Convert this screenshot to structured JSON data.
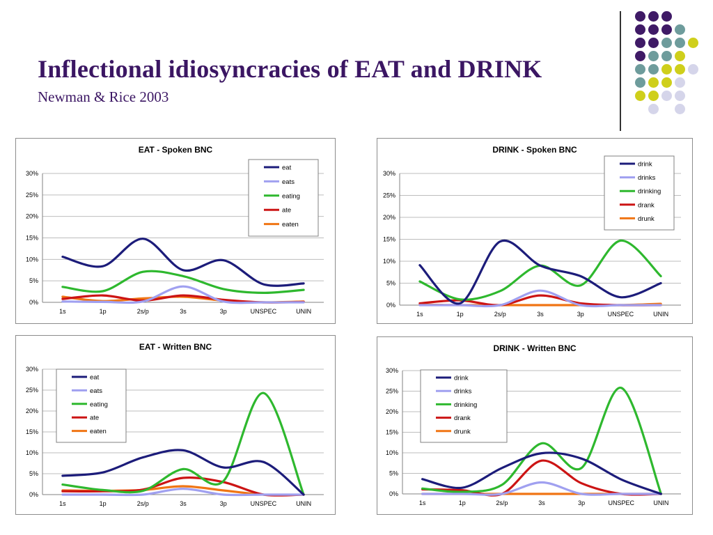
{
  "slide": {
    "title": "Inflectional idiosyncracies of EAT and DRINK",
    "subtitle": "Newman & Rice 2003"
  },
  "colors": {
    "title": "#3b1663",
    "dots": {
      "purple": "#3f1a66",
      "teal": "#6e9c9c",
      "yellow": "#cfcf1b",
      "lavender": "#d5d5ea"
    },
    "series": {
      "base": "#1c1c7a",
      "s": "#a0a0f0",
      "ing": "#2eb82e",
      "past": "#cc1414",
      "pp": "#f07514"
    }
  },
  "decoration": {
    "dot_pattern": [
      [
        "purple",
        "purple",
        "purple",
        null,
        null
      ],
      [
        "purple",
        "purple",
        "purple",
        "teal",
        null
      ],
      [
        "purple",
        "purple",
        "teal",
        "teal",
        "yellow"
      ],
      [
        "purple",
        "teal",
        "teal",
        "yellow",
        null
      ],
      [
        "teal",
        "teal",
        "yellow",
        "yellow",
        "lavender"
      ],
      [
        "teal",
        "yellow",
        "yellow",
        "lavender",
        null
      ],
      [
        "yellow",
        "yellow",
        "lavender",
        "lavender",
        null
      ],
      [
        null,
        "lavender",
        null,
        "lavender",
        null
      ]
    ]
  },
  "chart_data": [
    {
      "type": "line",
      "title": "EAT - Spoken BNC",
      "categories": [
        "1s",
        "1p",
        "2s/p",
        "3s",
        "3p",
        "UNSPEC",
        "UNIN"
      ],
      "ylim": [
        0,
        30
      ],
      "yticks": [
        "0%",
        "5%",
        "10%",
        "15%",
        "20%",
        "25%",
        "30%"
      ],
      "grid": true,
      "legend": "top-right",
      "series": [
        {
          "name": "eat",
          "color": "base",
          "values": [
            10.6,
            8.4,
            14.8,
            7.5,
            9.8,
            4.2,
            4.4
          ]
        },
        {
          "name": "eats",
          "color": "s",
          "values": [
            0.2,
            0.1,
            0.2,
            3.7,
            0.2,
            0.0,
            0.0
          ]
        },
        {
          "name": "eating",
          "color": "ing",
          "values": [
            3.6,
            2.6,
            7.1,
            6.1,
            3.1,
            2.2,
            2.9
          ]
        },
        {
          "name": "ate",
          "color": "past",
          "values": [
            0.8,
            1.6,
            0.4,
            1.6,
            0.6,
            0.0,
            0.1
          ]
        },
        {
          "name": "eaten",
          "color": "pp",
          "values": [
            1.3,
            0.3,
            0.9,
            1.3,
            0.4,
            0.0,
            0.2
          ]
        }
      ]
    },
    {
      "type": "line",
      "title": "DRINK - Spoken BNC",
      "categories": [
        "1s",
        "1p",
        "2s/p",
        "3s",
        "3p",
        "UNSPEC",
        "UNIN"
      ],
      "ylim": [
        0,
        30
      ],
      "yticks": [
        "0%",
        "5%",
        "10%",
        "15%",
        "20%",
        "25%",
        "30%"
      ],
      "grid": true,
      "legend": "top-right",
      "series": [
        {
          "name": "drink",
          "color": "base",
          "values": [
            9.1,
            0.4,
            14.5,
            9.0,
            6.6,
            1.8,
            5.0
          ]
        },
        {
          "name": "drinks",
          "color": "s",
          "values": [
            0.0,
            0.0,
            0.0,
            3.3,
            0.0,
            0.0,
            0.0
          ]
        },
        {
          "name": "drinking",
          "color": "ing",
          "values": [
            5.4,
            1.3,
            3.2,
            9.0,
            4.5,
            14.7,
            6.6
          ]
        },
        {
          "name": "drank",
          "color": "past",
          "values": [
            0.4,
            1.1,
            0.0,
            2.2,
            0.4,
            0.0,
            0.0
          ]
        },
        {
          "name": "drunk",
          "color": "pp",
          "values": [
            0.1,
            0.0,
            0.0,
            0.0,
            0.0,
            0.0,
            0.3
          ]
        }
      ]
    },
    {
      "type": "line",
      "title": "EAT - Written BNC",
      "categories": [
        "1s",
        "1p",
        "2s/p",
        "3s",
        "3p",
        "UNSPEC",
        "UNIN"
      ],
      "ylim": [
        0,
        30
      ],
      "yticks": [
        "0%",
        "5%",
        "10%",
        "15%",
        "20%",
        "25%",
        "30%"
      ],
      "grid": true,
      "legend": "top-left",
      "series": [
        {
          "name": "eat",
          "color": "base",
          "values": [
            4.5,
            5.3,
            8.9,
            10.6,
            6.5,
            7.8,
            0.0
          ]
        },
        {
          "name": "eats",
          "color": "s",
          "values": [
            0.0,
            0.0,
            0.0,
            1.4,
            0.0,
            0.0,
            0.0
          ]
        },
        {
          "name": "eating",
          "color": "ing",
          "values": [
            2.4,
            1.1,
            0.9,
            6.1,
            3.2,
            24.3,
            0.0
          ]
        },
        {
          "name": "ate",
          "color": "past",
          "values": [
            0.8,
            0.8,
            1.2,
            4.0,
            3.0,
            0.0,
            0.0
          ]
        },
        {
          "name": "eaten",
          "color": "pp",
          "values": [
            1.0,
            0.9,
            1.1,
            2.0,
            1.0,
            0.0,
            0.0
          ]
        }
      ]
    },
    {
      "type": "line",
      "title": "DRINK - Written BNC",
      "categories": [
        "1s",
        "1p",
        "2s/p",
        "3s",
        "3p",
        "UNSPEC",
        "UNIN"
      ],
      "ylim": [
        0,
        30
      ],
      "yticks": [
        "0%",
        "5%",
        "10%",
        "15%",
        "20%",
        "25%",
        "30%"
      ],
      "grid": true,
      "legend": "top-left",
      "series": [
        {
          "name": "drink",
          "color": "base",
          "values": [
            3.6,
            1.5,
            6.3,
            9.9,
            8.6,
            3.5,
            0.0
          ]
        },
        {
          "name": "drinks",
          "color": "s",
          "values": [
            0.0,
            0.0,
            0.0,
            2.8,
            0.0,
            0.0,
            0.0
          ]
        },
        {
          "name": "drinking",
          "color": "ing",
          "values": [
            1.3,
            0.5,
            2.2,
            12.3,
            6.3,
            25.8,
            0.0
          ]
        },
        {
          "name": "drank",
          "color": "past",
          "values": [
            1.1,
            0.9,
            0.0,
            8.1,
            2.6,
            0.0,
            0.0
          ]
        },
        {
          "name": "drunk",
          "color": "pp",
          "values": [
            0.0,
            0.0,
            0.0,
            0.0,
            0.0,
            0.0,
            0.0
          ]
        }
      ]
    }
  ]
}
